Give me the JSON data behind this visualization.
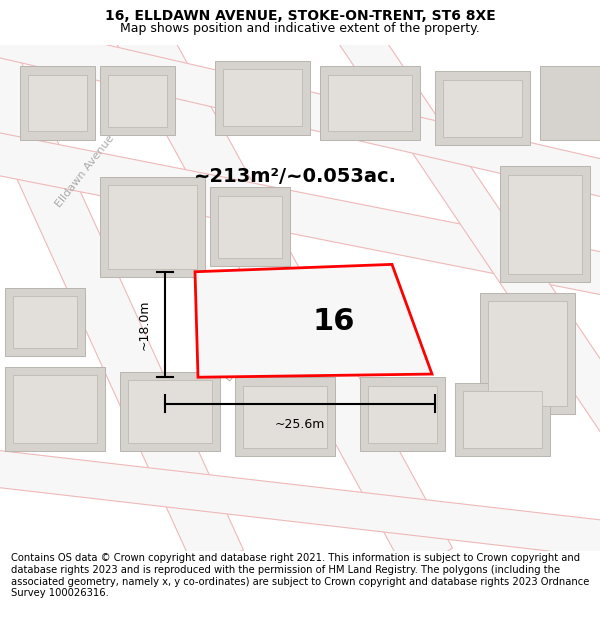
{
  "title": "16, ELLDAWN AVENUE, STOKE-ON-TRENT, ST6 8XE",
  "subtitle": "Map shows position and indicative extent of the property.",
  "footer": "Contains OS data © Crown copyright and database right 2021. This information is subject to Crown copyright and database rights 2023 and is reproduced with the permission of HM Land Registry. The polygons (including the associated geometry, namely x, y co-ordinates) are subject to Crown copyright and database rights 2023 Ordnance Survey 100026316.",
  "map_bg": "#f2f0ee",
  "road_fill": "#f7f7f7",
  "road_stroke": "#f0b8b8",
  "building_fill": "#d6d3ce",
  "building_edge": "#b8b4ae",
  "property_fill": "#f7f7f7",
  "property_edge": "#ff0000",
  "property_lw": 2.0,
  "label_16": "16",
  "area_label": "~213m²/~0.053ac.",
  "width_label": "~25.6m",
  "height_label": "~18.0m",
  "title_fontsize": 10,
  "subtitle_fontsize": 9,
  "footer_fontsize": 7.2,
  "street_color": "#aaaaaa",
  "street_label": "Elldawn Avenue"
}
